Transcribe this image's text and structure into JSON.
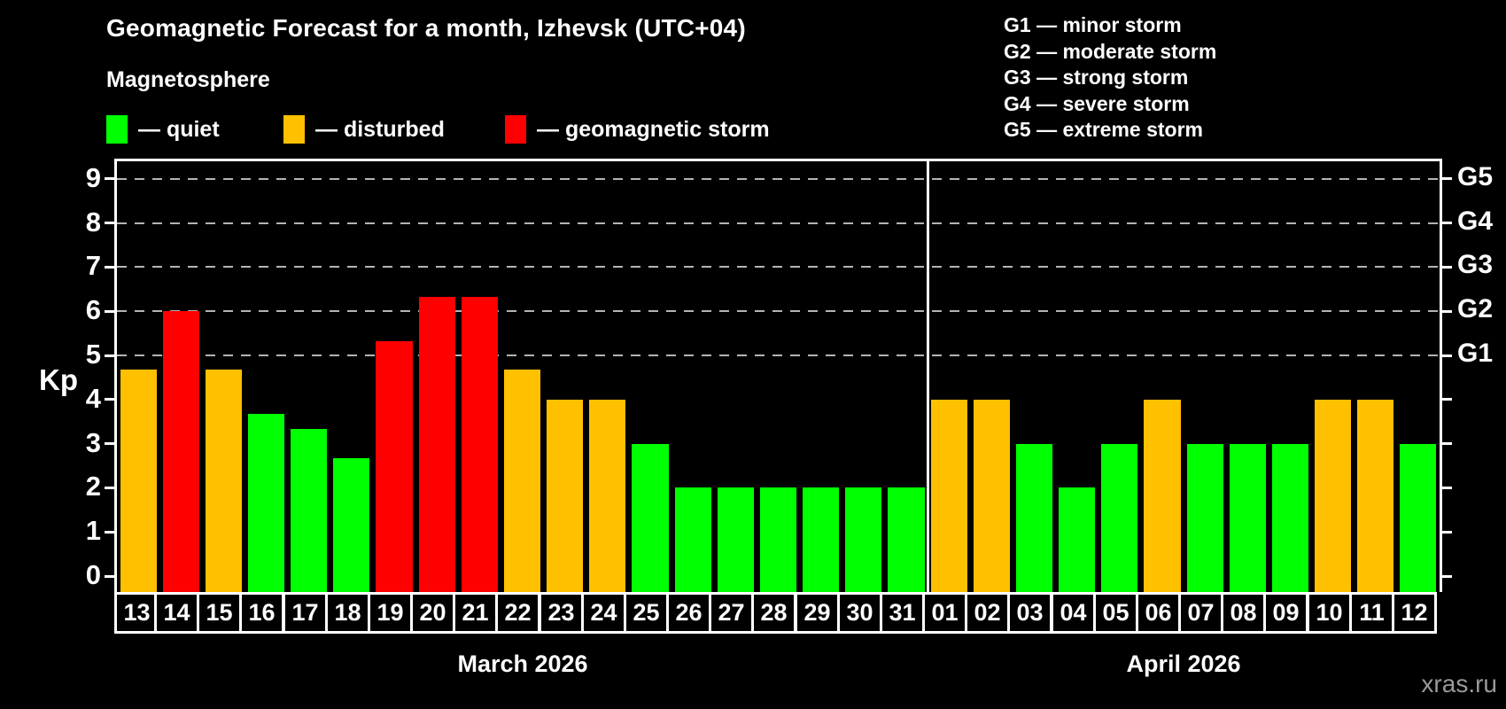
{
  "title": "Geomagnetic Forecast for a month, Izhevsk (UTC+04)",
  "legend": {
    "heading": "Magnetosphere",
    "items": [
      {
        "key": "quiet",
        "label": "— quiet"
      },
      {
        "key": "disturbed",
        "label": "— disturbed"
      },
      {
        "key": "storm",
        "label": "— geomagnetic storm"
      }
    ]
  },
  "g_legend": [
    "G1 — minor storm",
    "G2 — moderate storm",
    "G3 — strong storm",
    "G4 — severe storm",
    "G5 — extreme storm"
  ],
  "watermark": "xras.ru",
  "chart_data": {
    "type": "bar",
    "ylabel": "Kp",
    "ylim": [
      0,
      9
    ],
    "y_ticks": [
      0,
      1,
      2,
      3,
      4,
      5,
      6,
      7,
      8,
      9
    ],
    "gridlines_at": [
      5,
      6,
      7,
      8,
      9
    ],
    "grid": "dashed horizontal at storm levels only",
    "right_axis_labels": [
      {
        "kp": 5,
        "label": "G1"
      },
      {
        "kp": 6,
        "label": "G2"
      },
      {
        "kp": 7,
        "label": "G3"
      },
      {
        "kp": 8,
        "label": "G4"
      },
      {
        "kp": 9,
        "label": "G5"
      }
    ],
    "colors": {
      "quiet": "#00ff00",
      "disturbed": "#ffc000",
      "storm": "#ff0000"
    },
    "months": [
      {
        "label": "March 2026",
        "days": [
          {
            "day": "13",
            "kp": 4.67,
            "status": "disturbed"
          },
          {
            "day": "14",
            "kp": 6.0,
            "status": "storm"
          },
          {
            "day": "15",
            "kp": 4.67,
            "status": "disturbed"
          },
          {
            "day": "16",
            "kp": 3.67,
            "status": "quiet"
          },
          {
            "day": "17",
            "kp": 3.33,
            "status": "quiet"
          },
          {
            "day": "18",
            "kp": 2.67,
            "status": "quiet"
          },
          {
            "day": "19",
            "kp": 5.33,
            "status": "storm"
          },
          {
            "day": "20",
            "kp": 6.33,
            "status": "storm"
          },
          {
            "day": "21",
            "kp": 6.33,
            "status": "storm"
          },
          {
            "day": "22",
            "kp": 4.67,
            "status": "disturbed"
          },
          {
            "day": "23",
            "kp": 4.0,
            "status": "disturbed"
          },
          {
            "day": "24",
            "kp": 4.0,
            "status": "disturbed"
          },
          {
            "day": "25",
            "kp": 3.0,
            "status": "quiet"
          },
          {
            "day": "26",
            "kp": 2.0,
            "status": "quiet"
          },
          {
            "day": "27",
            "kp": 2.0,
            "status": "quiet"
          },
          {
            "day": "28",
            "kp": 2.0,
            "status": "quiet"
          },
          {
            "day": "29",
            "kp": 2.0,
            "status": "quiet"
          },
          {
            "day": "30",
            "kp": 2.0,
            "status": "quiet"
          },
          {
            "day": "31",
            "kp": 2.0,
            "status": "quiet"
          }
        ]
      },
      {
        "label": "April 2026",
        "days": [
          {
            "day": "01",
            "kp": 4.0,
            "status": "disturbed"
          },
          {
            "day": "02",
            "kp": 4.0,
            "status": "disturbed"
          },
          {
            "day": "03",
            "kp": 3.0,
            "status": "quiet"
          },
          {
            "day": "04",
            "kp": 2.0,
            "status": "quiet"
          },
          {
            "day": "05",
            "kp": 3.0,
            "status": "quiet"
          },
          {
            "day": "06",
            "kp": 4.0,
            "status": "disturbed"
          },
          {
            "day": "07",
            "kp": 3.0,
            "status": "quiet"
          },
          {
            "day": "08",
            "kp": 3.0,
            "status": "quiet"
          },
          {
            "day": "09",
            "kp": 3.0,
            "status": "quiet"
          },
          {
            "day": "10",
            "kp": 4.0,
            "status": "disturbed"
          },
          {
            "day": "11",
            "kp": 4.0,
            "status": "disturbed"
          },
          {
            "day": "12",
            "kp": 3.0,
            "status": "quiet"
          }
        ]
      }
    ]
  }
}
